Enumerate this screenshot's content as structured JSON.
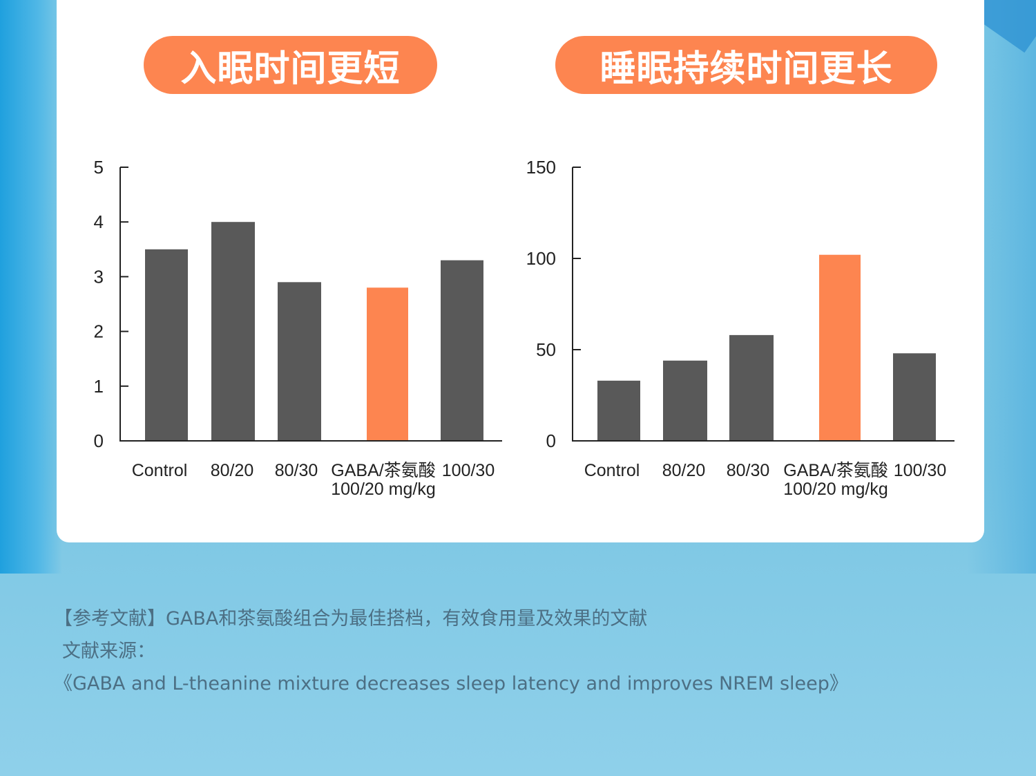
{
  "colors": {
    "accent": "#fd8550",
    "bar": "#595959",
    "highlight_bar": "#fd8550",
    "axis": "#222222"
  },
  "titles": {
    "left": "入眠时间更短",
    "right": "睡眠持续时间更长"
  },
  "chart_data": [
    {
      "type": "bar",
      "title": "入眠时间更短",
      "categories": [
        "Control",
        "80/20",
        "80/30",
        "GABA/茶氨酸\n100/20 mg/kg",
        "100/30"
      ],
      "values": [
        3.5,
        4.0,
        2.9,
        2.8,
        3.3
      ],
      "highlight_index": 3,
      "ylim": [
        0,
        5
      ],
      "yticks": [
        0,
        1,
        2,
        3,
        4,
        5
      ],
      "xlabel": "",
      "ylabel": "",
      "grid": false,
      "legend": "none"
    },
    {
      "type": "bar",
      "title": "睡眠持续时间更长",
      "categories": [
        "Control",
        "80/20",
        "80/30",
        "GABA/茶氨酸\n100/20 mg/kg",
        "100/30"
      ],
      "values": [
        33,
        44,
        58,
        102,
        48
      ],
      "highlight_index": 3,
      "ylim": [
        0,
        150
      ],
      "yticks": [
        0,
        50,
        100,
        150
      ],
      "xlabel": "",
      "ylabel": "",
      "grid": false,
      "legend": "none"
    }
  ],
  "references": {
    "line1": "【参考文献】GABA和茶氨酸组合为最佳搭档，有效食用量及效果的文献",
    "line2": "文献来源：",
    "line3": "《GABA and L-theanine mixture decreases sleep latency and improves NREM sleep》"
  }
}
